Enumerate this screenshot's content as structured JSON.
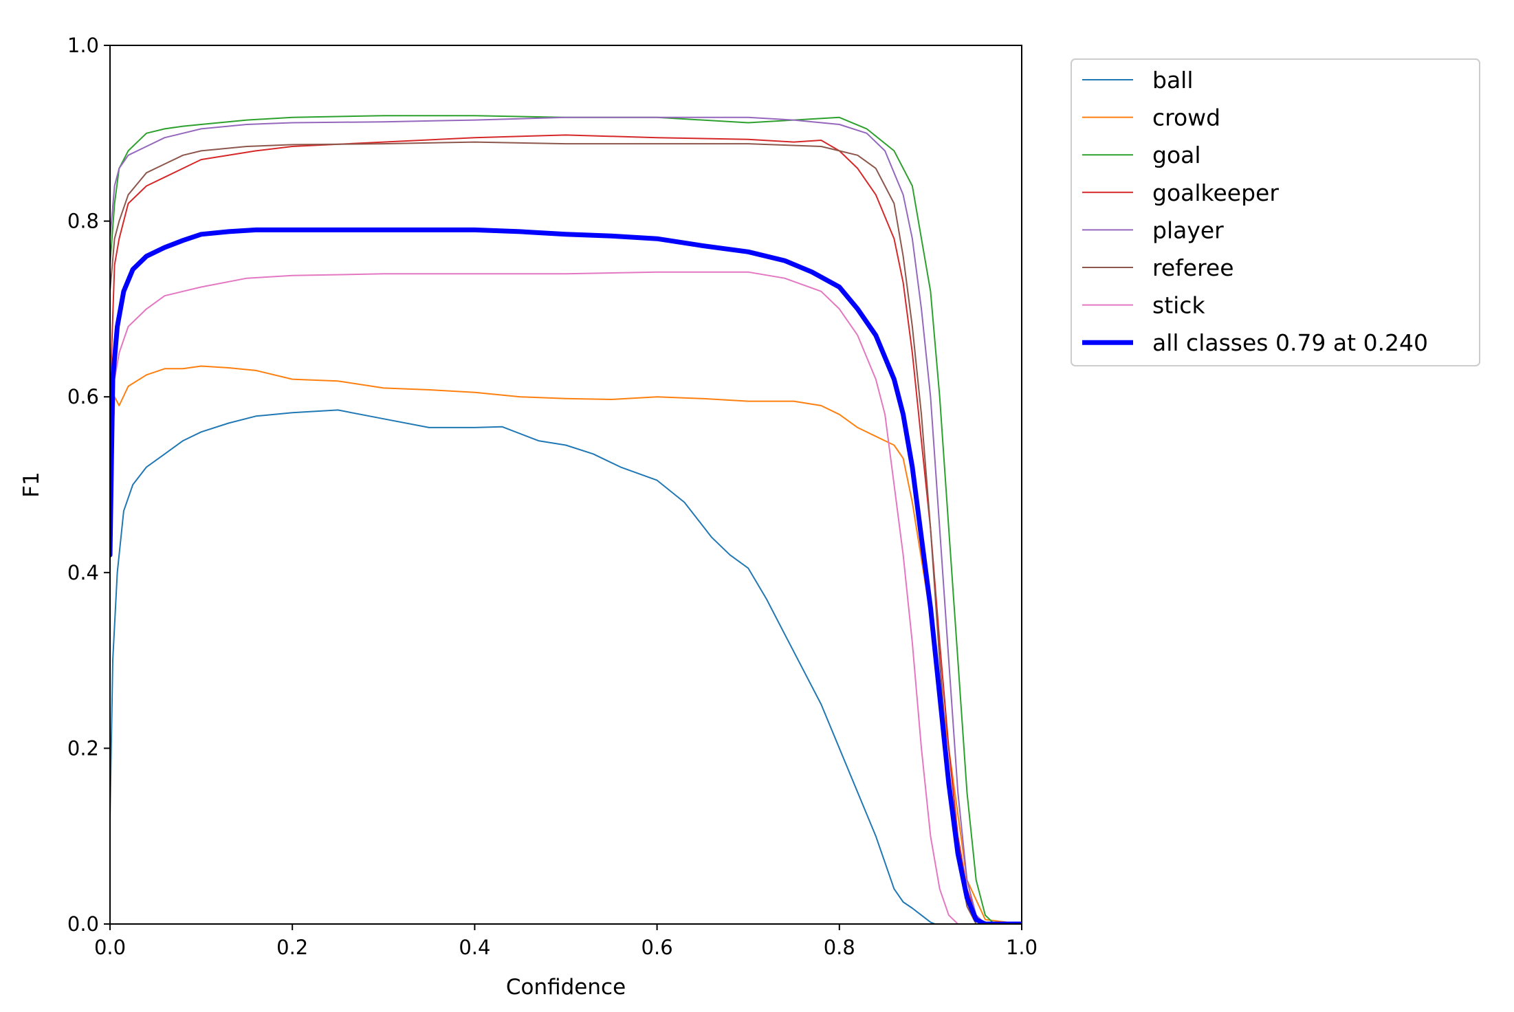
{
  "chart_data": {
    "type": "line",
    "xlabel": "Confidence",
    "ylabel": "F1",
    "xlim": [
      0,
      1
    ],
    "ylim": [
      0,
      1
    ],
    "x_ticks": [
      "0.0",
      "0.2",
      "0.4",
      "0.6",
      "0.8",
      "1.0"
    ],
    "y_ticks": [
      "0.0",
      "0.2",
      "0.4",
      "0.6",
      "0.8",
      "1.0"
    ],
    "grid": false,
    "legend_position": "outside-upper-right",
    "series": [
      {
        "name": "ball",
        "color": "#1f77b4",
        "width": 2,
        "x": [
          0.0,
          0.003,
          0.008,
          0.015,
          0.025,
          0.04,
          0.06,
          0.08,
          0.1,
          0.13,
          0.16,
          0.2,
          0.25,
          0.3,
          0.35,
          0.4,
          0.43,
          0.47,
          0.5,
          0.53,
          0.56,
          0.6,
          0.63,
          0.66,
          0.68,
          0.7,
          0.72,
          0.74,
          0.76,
          0.78,
          0.8,
          0.82,
          0.84,
          0.86,
          0.87,
          0.88,
          0.89,
          0.9,
          0.905,
          1.0
        ],
        "y": [
          0.12,
          0.3,
          0.4,
          0.47,
          0.5,
          0.52,
          0.535,
          0.55,
          0.56,
          0.57,
          0.578,
          0.582,
          0.585,
          0.575,
          0.565,
          0.565,
          0.566,
          0.55,
          0.545,
          0.535,
          0.52,
          0.505,
          0.48,
          0.44,
          0.42,
          0.405,
          0.37,
          0.33,
          0.29,
          0.25,
          0.2,
          0.15,
          0.1,
          0.04,
          0.025,
          0.018,
          0.01,
          0.002,
          0.0,
          0.0
        ]
      },
      {
        "name": "crowd",
        "color": "#ff7f0e",
        "width": 2,
        "x": [
          0.0,
          0.005,
          0.01,
          0.02,
          0.04,
          0.06,
          0.08,
          0.1,
          0.13,
          0.16,
          0.2,
          0.25,
          0.3,
          0.35,
          0.4,
          0.45,
          0.5,
          0.55,
          0.6,
          0.65,
          0.7,
          0.75,
          0.78,
          0.8,
          0.82,
          0.84,
          0.85,
          0.86,
          0.87,
          0.88,
          0.9,
          0.92,
          0.94,
          0.96,
          1.0
        ],
        "y": [
          0.45,
          0.6,
          0.59,
          0.612,
          0.625,
          0.632,
          0.632,
          0.635,
          0.633,
          0.63,
          0.62,
          0.618,
          0.61,
          0.608,
          0.605,
          0.6,
          0.598,
          0.597,
          0.6,
          0.598,
          0.595,
          0.595,
          0.59,
          0.58,
          0.565,
          0.555,
          0.55,
          0.545,
          0.53,
          0.48,
          0.35,
          0.2,
          0.05,
          0.005,
          0.0
        ]
      },
      {
        "name": "goal",
        "color": "#2ca02c",
        "width": 2,
        "x": [
          0.0,
          0.005,
          0.01,
          0.02,
          0.04,
          0.06,
          0.08,
          0.1,
          0.15,
          0.2,
          0.3,
          0.4,
          0.5,
          0.6,
          0.7,
          0.75,
          0.8,
          0.83,
          0.86,
          0.88,
          0.9,
          0.91,
          0.92,
          0.93,
          0.94,
          0.95,
          0.96,
          0.97,
          1.0
        ],
        "y": [
          0.75,
          0.82,
          0.86,
          0.88,
          0.9,
          0.905,
          0.908,
          0.91,
          0.915,
          0.918,
          0.92,
          0.92,
          0.918,
          0.918,
          0.912,
          0.915,
          0.918,
          0.905,
          0.88,
          0.84,
          0.72,
          0.6,
          0.45,
          0.3,
          0.15,
          0.05,
          0.01,
          0.0,
          0.0
        ]
      },
      {
        "name": "goalkeeper",
        "color": "#d62728",
        "width": 2,
        "x": [
          0.0,
          0.005,
          0.01,
          0.02,
          0.04,
          0.06,
          0.08,
          0.1,
          0.13,
          0.16,
          0.2,
          0.3,
          0.4,
          0.5,
          0.6,
          0.7,
          0.75,
          0.78,
          0.8,
          0.82,
          0.84,
          0.86,
          0.87,
          0.88,
          0.89,
          0.9,
          0.91,
          0.92,
          0.93,
          0.94,
          0.95,
          0.96,
          1.0
        ],
        "y": [
          0.6,
          0.75,
          0.78,
          0.82,
          0.84,
          0.85,
          0.86,
          0.87,
          0.875,
          0.88,
          0.885,
          0.89,
          0.895,
          0.898,
          0.895,
          0.893,
          0.89,
          0.892,
          0.88,
          0.86,
          0.83,
          0.78,
          0.73,
          0.65,
          0.55,
          0.45,
          0.32,
          0.2,
          0.1,
          0.04,
          0.01,
          0.0,
          0.0
        ]
      },
      {
        "name": "player",
        "color": "#9467bd",
        "width": 2,
        "x": [
          0.0,
          0.005,
          0.01,
          0.02,
          0.04,
          0.06,
          0.08,
          0.1,
          0.15,
          0.2,
          0.3,
          0.4,
          0.5,
          0.6,
          0.7,
          0.75,
          0.8,
          0.83,
          0.85,
          0.87,
          0.88,
          0.89,
          0.9,
          0.91,
          0.92,
          0.93,
          0.94,
          0.95,
          0.96,
          1.0
        ],
        "y": [
          0.78,
          0.84,
          0.86,
          0.875,
          0.885,
          0.895,
          0.9,
          0.905,
          0.91,
          0.912,
          0.913,
          0.915,
          0.918,
          0.918,
          0.918,
          0.915,
          0.91,
          0.9,
          0.88,
          0.83,
          0.78,
          0.7,
          0.6,
          0.45,
          0.3,
          0.15,
          0.05,
          0.01,
          0.0,
          0.0
        ]
      },
      {
        "name": "referee",
        "color": "#8c564b",
        "width": 2,
        "x": [
          0.0,
          0.005,
          0.01,
          0.02,
          0.04,
          0.06,
          0.08,
          0.1,
          0.15,
          0.2,
          0.3,
          0.4,
          0.5,
          0.6,
          0.7,
          0.78,
          0.8,
          0.82,
          0.84,
          0.86,
          0.87,
          0.88,
          0.89,
          0.9,
          0.91,
          0.92,
          0.93,
          0.94,
          0.95,
          1.0
        ],
        "y": [
          0.72,
          0.78,
          0.8,
          0.83,
          0.855,
          0.865,
          0.875,
          0.88,
          0.885,
          0.887,
          0.888,
          0.89,
          0.888,
          0.888,
          0.888,
          0.885,
          0.88,
          0.875,
          0.86,
          0.82,
          0.76,
          0.68,
          0.58,
          0.45,
          0.3,
          0.17,
          0.08,
          0.02,
          0.0,
          0.0
        ]
      },
      {
        "name": "stick",
        "color": "#e377c2",
        "width": 2,
        "x": [
          0.0,
          0.005,
          0.01,
          0.02,
          0.04,
          0.06,
          0.08,
          0.1,
          0.15,
          0.2,
          0.3,
          0.4,
          0.5,
          0.6,
          0.7,
          0.74,
          0.78,
          0.8,
          0.82,
          0.84,
          0.85,
          0.86,
          0.87,
          0.88,
          0.89,
          0.9,
          0.91,
          0.92,
          0.93,
          1.0
        ],
        "y": [
          0.45,
          0.62,
          0.65,
          0.68,
          0.7,
          0.715,
          0.72,
          0.725,
          0.735,
          0.738,
          0.74,
          0.74,
          0.74,
          0.742,
          0.742,
          0.735,
          0.72,
          0.7,
          0.67,
          0.62,
          0.58,
          0.5,
          0.42,
          0.32,
          0.2,
          0.1,
          0.04,
          0.01,
          0.0,
          0.0
        ]
      },
      {
        "name": "all classes 0.79 at 0.240",
        "color": "#0000ff",
        "width": 7,
        "x": [
          0.0,
          0.003,
          0.008,
          0.015,
          0.025,
          0.04,
          0.06,
          0.08,
          0.1,
          0.13,
          0.16,
          0.2,
          0.24,
          0.3,
          0.35,
          0.4,
          0.45,
          0.5,
          0.55,
          0.6,
          0.65,
          0.7,
          0.74,
          0.77,
          0.8,
          0.82,
          0.84,
          0.86,
          0.87,
          0.88,
          0.89,
          0.9,
          0.91,
          0.92,
          0.93,
          0.94,
          0.95,
          0.96,
          1.0
        ],
        "y": [
          0.42,
          0.62,
          0.68,
          0.72,
          0.745,
          0.76,
          0.77,
          0.778,
          0.785,
          0.788,
          0.79,
          0.79,
          0.79,
          0.79,
          0.79,
          0.79,
          0.788,
          0.785,
          0.783,
          0.78,
          0.772,
          0.765,
          0.755,
          0.742,
          0.725,
          0.7,
          0.67,
          0.62,
          0.58,
          0.52,
          0.44,
          0.36,
          0.26,
          0.16,
          0.08,
          0.03,
          0.005,
          0.0,
          0.0
        ]
      }
    ]
  }
}
